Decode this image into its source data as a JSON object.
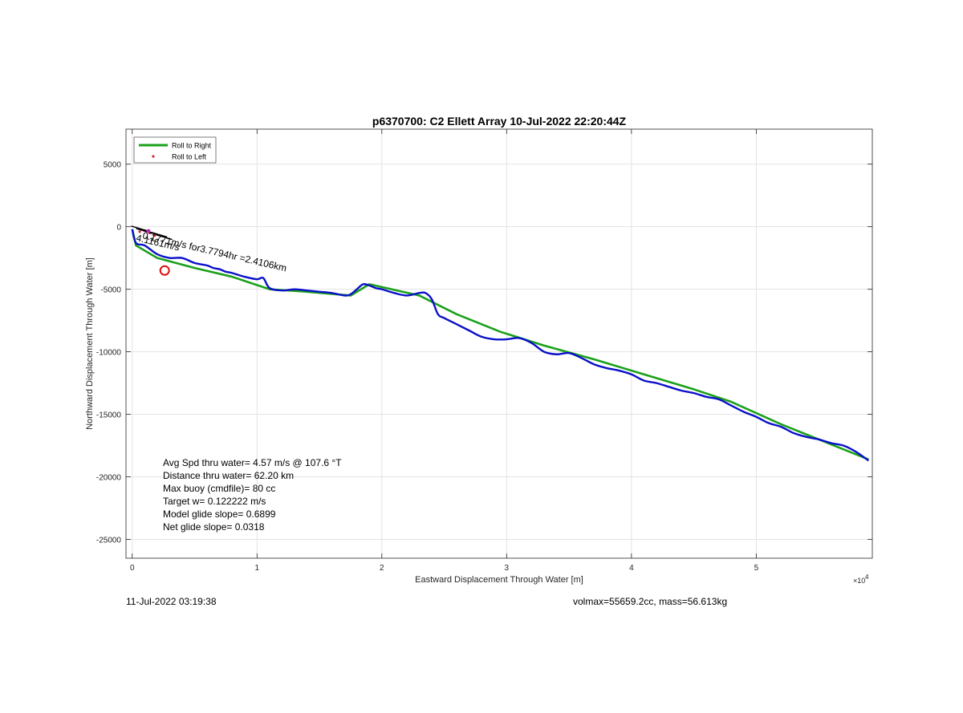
{
  "chart_data": {
    "type": "line",
    "title": "p6370700: C2 Ellett Array 10-Jul-2022 22:20:44Z",
    "xlabel": "Eastward Displacement Through Water [m]",
    "ylabel": "Northward Displacement Through Water [m]",
    "x_exponent_label": "×10",
    "x_exponent": "4",
    "xlim": [
      -500,
      59300
    ],
    "ylim": [
      -26500,
      7800
    ],
    "xticks": [
      0,
      10000,
      20000,
      30000,
      40000,
      50000
    ],
    "xtick_labels": [
      "0",
      "1",
      "2",
      "3",
      "4",
      "5"
    ],
    "yticks": [
      5000,
      0,
      -5000,
      -10000,
      -15000,
      -20000,
      -25000
    ],
    "ytick_labels": [
      "5000",
      "0",
      "-5000",
      "-10000",
      "-15000",
      "-20000",
      "-25000"
    ],
    "grid": true,
    "legend_position": "top-left",
    "legend": [
      {
        "label": "Roll to Right",
        "color": "#1aa01a",
        "marker": "line"
      },
      {
        "label": "Roll to Left",
        "color": "#e0203a",
        "marker": "dot"
      }
    ],
    "series": [
      {
        "name": "Roll to Right",
        "color": "#1aa01a",
        "x": [
          0,
          300,
          2000,
          5000,
          8000,
          11000,
          14000,
          17500,
          19000,
          23000,
          26000,
          29500,
          33000,
          37000,
          41000,
          45000,
          48000,
          52000,
          55000,
          59000
        ],
        "y": [
          -200,
          -1500,
          -2500,
          -3300,
          -4000,
          -5000,
          -5200,
          -5500,
          -4600,
          -5500,
          -7000,
          -8400,
          -9500,
          -10600,
          -11800,
          -13000,
          -14000,
          -15800,
          -17000,
          -18600
        ]
      },
      {
        "name": "",
        "color": "#0a10c8",
        "x": [
          0,
          300,
          1000,
          2000,
          3000,
          4000,
          5000,
          6000,
          6500,
          7000,
          7500,
          8000,
          9000,
          10000,
          10500,
          11000,
          12000,
          13000,
          14000,
          15000,
          16000,
          17000,
          17500,
          18000,
          18500,
          19000,
          19500,
          20000,
          21000,
          22000,
          23000,
          23500,
          24000,
          24500,
          25000,
          26000,
          27000,
          28000,
          29000,
          30000,
          31000,
          32000,
          33000,
          34000,
          35000,
          36000,
          37000,
          38000,
          39000,
          40000,
          41000,
          42000,
          43000,
          44000,
          45000,
          46000,
          47000,
          48000,
          49000,
          50000,
          51000,
          52000,
          53000,
          54000,
          55000,
          56000,
          57000,
          58000,
          59000
        ],
        "y": [
          -200,
          -1300,
          -1500,
          -2200,
          -2500,
          -2500,
          -2900,
          -3100,
          -3300,
          -3400,
          -3600,
          -3700,
          -4000,
          -4200,
          -4100,
          -4900,
          -5100,
          -5000,
          -5100,
          -5200,
          -5300,
          -5500,
          -5400,
          -5000,
          -4600,
          -4700,
          -4900,
          -5000,
          -5300,
          -5500,
          -5300,
          -5300,
          -5800,
          -7000,
          -7300,
          -7800,
          -8300,
          -8800,
          -9000,
          -9000,
          -8900,
          -9300,
          -10000,
          -10200,
          -10100,
          -10500,
          -11000,
          -11300,
          -11500,
          -11800,
          -12300,
          -12500,
          -12800,
          -13100,
          -13300,
          -13600,
          -13800,
          -14300,
          -14800,
          -15200,
          -15700,
          -16000,
          -16500,
          -16800,
          -17000,
          -17300,
          -17500,
          -18000,
          -18700
        ]
      }
    ],
    "roll_to_left_points": {
      "color": "#e0203a",
      "x": [
        600,
        1000,
        1400,
        1800
      ],
      "y": [
        -400,
        -300,
        -500,
        -700
      ]
    },
    "marker_circle": {
      "color": "#e01010",
      "x": 2600,
      "y": -3500
    },
    "heading_arrows": {
      "color": "#000000",
      "x": [
        300,
        700,
        1100,
        1500,
        1900,
        2300
      ],
      "y": [
        -200,
        -400,
        -500,
        -600,
        -700,
        -900
      ]
    },
    "annotations": {
      "current_text": "0.1771m/s for3.7794hr =2.4106km",
      "speed_text": "4.1161m/s",
      "current_x": 1300,
      "current_y": -800
    }
  },
  "stats_text": [
    "Avg Spd thru water=  4.57 m/s @ 107.6 °T",
    "Distance thru water= 62.20 km",
    "Max buoy (cmdfile)= 80 cc",
    "Target w= 0.122222 m/s",
    "Model glide slope= 0.6899",
    "Net glide slope= 0.0318"
  ],
  "footer": {
    "timestamp": "11-Jul-2022 03:19:38",
    "volmax_mass": "volmax=55659.2cc, mass=56.613kg"
  }
}
